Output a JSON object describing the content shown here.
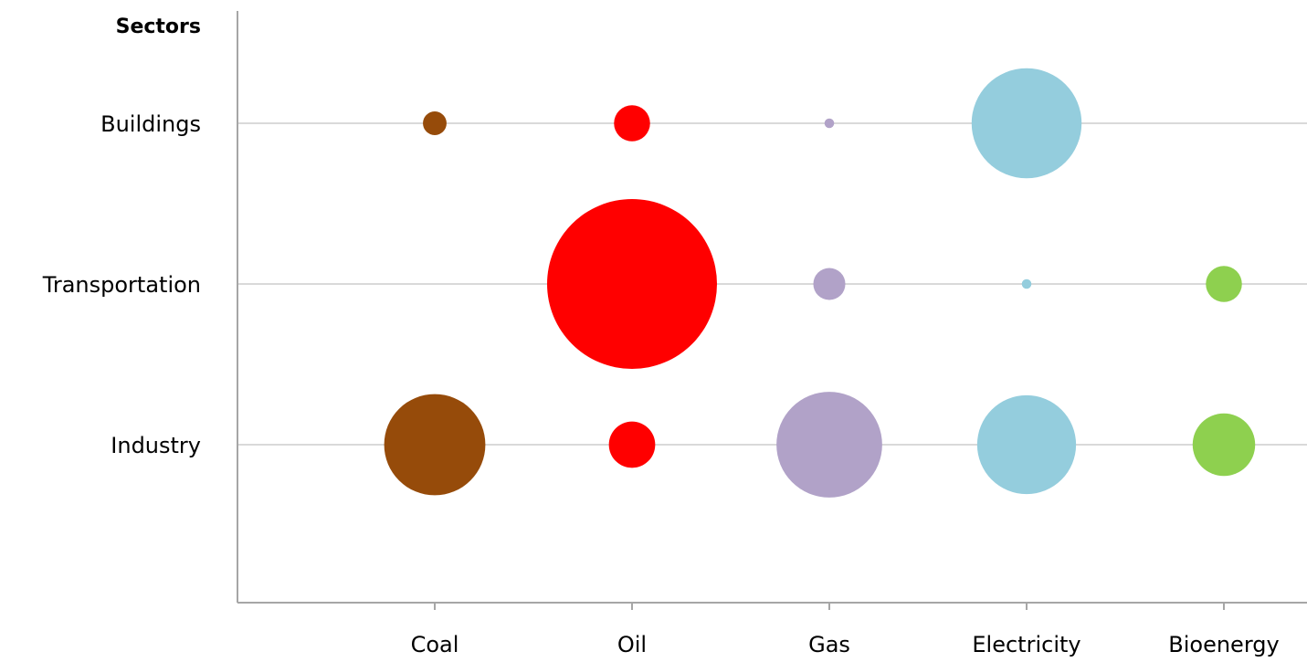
{
  "chart_data": {
    "type": "bubble",
    "y_axis_title": "Sectors",
    "x_categories": [
      "Coal",
      "Oil",
      "Gas",
      "Electricity",
      "Bioenergy"
    ],
    "y_categories": [
      "Buildings",
      "Transportation",
      "Industry"
    ],
    "grid": "horizontal",
    "legend": "none",
    "colors": {
      "Coal": "#964B0A",
      "Oil": "#FF0000",
      "Gas": "#B1A2C8",
      "Electricity": "#94CDDD",
      "Bioenergy": "#8ED04F"
    },
    "points": [
      {
        "sector": "Buildings",
        "source": "Coal",
        "value": 0.6
      },
      {
        "sector": "Buildings",
        "source": "Oil",
        "value": 1.4
      },
      {
        "sector": "Buildings",
        "source": "Gas",
        "value": 0.1
      },
      {
        "sector": "Buildings",
        "source": "Electricity",
        "value": 13.0
      },
      {
        "sector": "Transportation",
        "source": "Oil",
        "value": 31.0
      },
      {
        "sector": "Transportation",
        "source": "Gas",
        "value": 1.1
      },
      {
        "sector": "Transportation",
        "source": "Electricity",
        "value": 0.1
      },
      {
        "sector": "Transportation",
        "source": "Bioenergy",
        "value": 1.4
      },
      {
        "sector": "Industry",
        "source": "Coal",
        "value": 11.0
      },
      {
        "sector": "Industry",
        "source": "Oil",
        "value": 2.3
      },
      {
        "sector": "Industry",
        "source": "Gas",
        "value": 12.0
      },
      {
        "sector": "Industry",
        "source": "Electricity",
        "value": 10.5
      },
      {
        "sector": "Industry",
        "source": "Bioenergy",
        "value": 4.2
      }
    ]
  }
}
